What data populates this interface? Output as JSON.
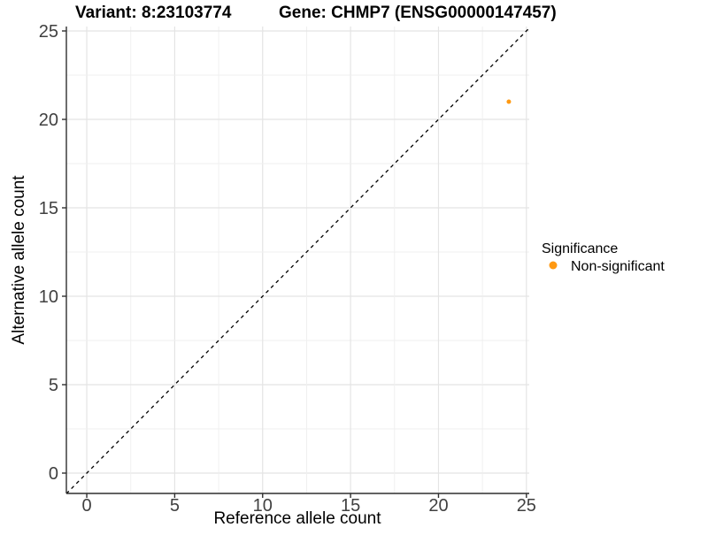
{
  "header": {
    "variant_title": "Variant: 8:23103774",
    "gene_title": "Gene: CHMP7 (ENSG00000147457)"
  },
  "legend": {
    "title": "Significance",
    "items": [
      {
        "label": "Non-significant",
        "color": "#FF9912",
        "marker": "dot-icon"
      }
    ]
  },
  "chart_data": {
    "type": "scatter",
    "title": "Variant: 8:23103774",
    "subtitle": "Gene: CHMP7 (ENSG00000147457)",
    "xlabel": "Reference allele count",
    "ylabel": "Alternative allele count",
    "xlim": [
      -1.16,
      25.16
    ],
    "ylim": [
      -1.15,
      25.25
    ],
    "x_ticks": [
      0,
      5,
      10,
      15,
      20,
      25
    ],
    "y_ticks": [
      0,
      5,
      10,
      15,
      20,
      25
    ],
    "minor_grid_step": 2.5,
    "grid": true,
    "legend_position": "right",
    "series": [
      {
        "name": "Non-significant",
        "color": "#FF9912",
        "points": [
          {
            "x": 24,
            "y": 21
          }
        ]
      }
    ],
    "reference_line": {
      "slope": 1,
      "intercept": 0,
      "style": "dashed",
      "color": "#000000"
    }
  },
  "colors": {
    "background": "#FFFFFF",
    "grid_major": "#E4E4E4",
    "grid_minor": "#EFEFEF",
    "axis_line": "#2F2F2F",
    "tick_mark": "#2F2F2F",
    "tick_text": "#404040",
    "point": "#FF9912"
  }
}
